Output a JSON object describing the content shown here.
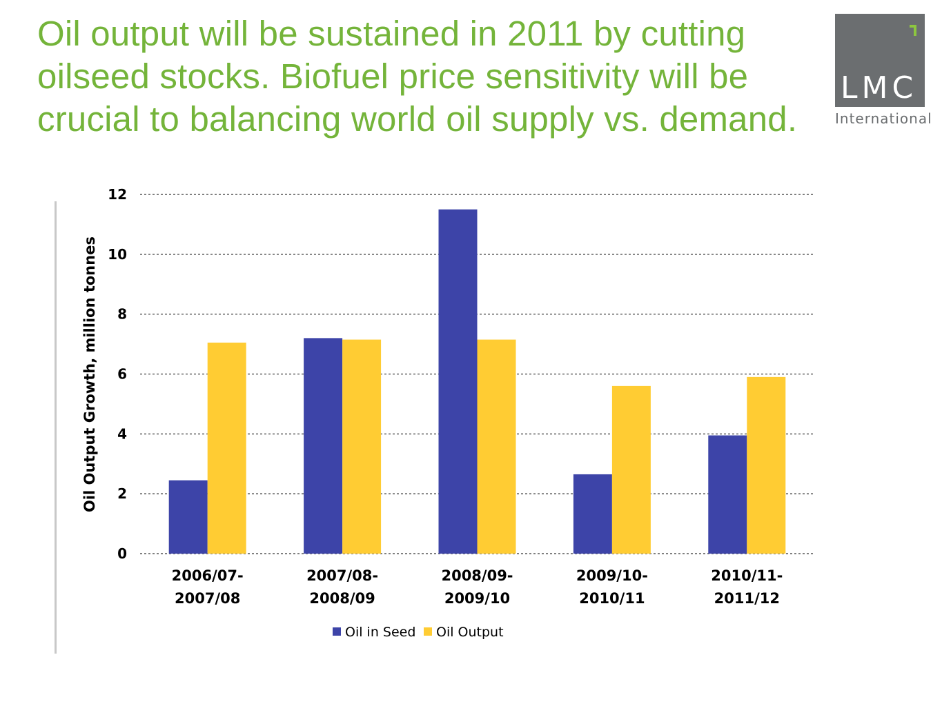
{
  "slide": {
    "title_lines": [
      "Oil output will be sustained in 2011 by cutting",
      "oilseed stocks. Biofuel price sensitivity will be",
      "crucial to balancing world oil supply vs. demand."
    ]
  },
  "logo": {
    "name": "LMC",
    "subtitle": "International",
    "accent_color": "#8dc63f",
    "box_color": "#6b6e70"
  },
  "chart_data": {
    "type": "bar",
    "ylabel": "Oil Output Growth, million tonnes",
    "ylim": [
      0,
      12
    ],
    "yticks": [
      0,
      2,
      4,
      6,
      8,
      10,
      12
    ],
    "grid": true,
    "legend_position": "bottom",
    "categories": [
      [
        "2006/07-",
        "2007/08"
      ],
      [
        "2007/08-",
        "2008/09"
      ],
      [
        "2008/09-",
        "2009/10"
      ],
      [
        "2009/10-",
        "2010/11"
      ],
      [
        "2010/11-",
        "2011/12"
      ]
    ],
    "series": [
      {
        "name": "Oil in Seed",
        "color": "#3d44a8",
        "values": [
          2.45,
          7.2,
          11.5,
          2.65,
          3.95
        ]
      },
      {
        "name": "Oil Output",
        "color": "#ffcc33",
        "values": [
          7.05,
          7.15,
          7.15,
          5.6,
          5.9
        ]
      }
    ]
  }
}
